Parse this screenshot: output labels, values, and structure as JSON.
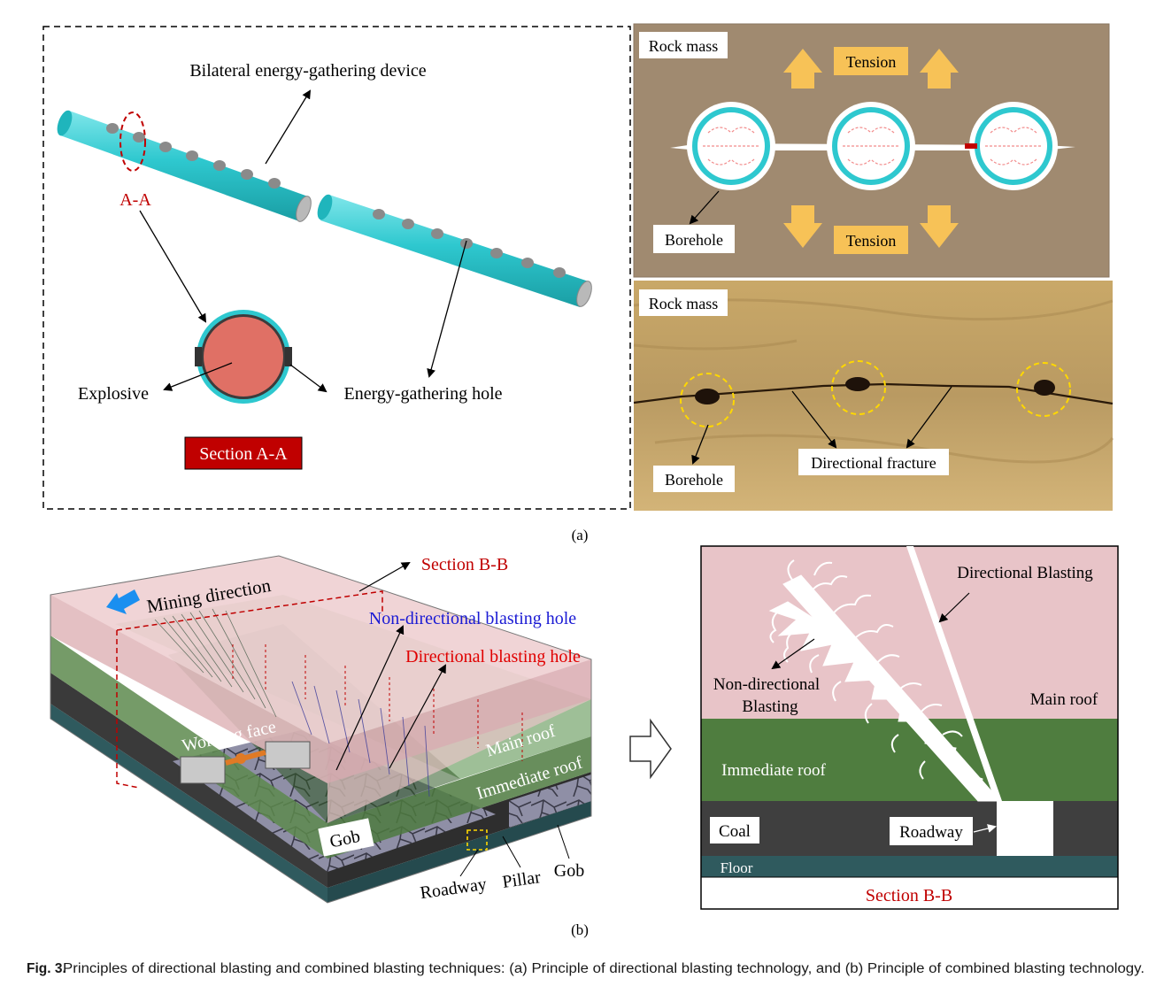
{
  "panel_a": {
    "device_label": "Bilateral energy-gathering device",
    "aa_label": "A-A",
    "explosive_label": "Explosive",
    "hole_label": "Energy-gathering hole",
    "section_label": "Section A-A",
    "tension_top": "Tension",
    "tension_bottom": "Tension",
    "rock_mass_1": "Rock mass",
    "borehole_1": "Borehole",
    "rock_mass_2": "Rock mass",
    "borehole_2": "Borehole",
    "fracture_label": "Directional fracture",
    "sub_label": "(a)"
  },
  "panel_b": {
    "section_bb": "Section B-B",
    "mining_direction": "Mining direction",
    "non_dir_hole": "Non-directional blasting hole",
    "dir_hole": "Directional blasting hole",
    "working_face": "Working face",
    "main_roof": "Main roof",
    "immediate_roof": "Immediate roof",
    "gob_1": "Gob",
    "roadway": "Roadway",
    "pillar": "Pillar",
    "gob_2": "Gob",
    "sub_label": "(b)"
  },
  "section_view": {
    "directional_blasting": "Directional Blasting",
    "non_directional": "Non-directional",
    "blasting": "Blasting",
    "main_roof": "Main roof",
    "immediate_roof": "Immediate roof",
    "coal": "Coal",
    "roadway": "Roadway",
    "floor": "Floor",
    "title": "Section B-B"
  },
  "caption": {
    "fig": "Fig. 3.",
    "text": "Principles of directional blasting and combined blasting techniques: (a) Principle of directional blasting technology, and (b) Principle of combined blasting technology."
  },
  "colors": {
    "cyan": "#2ec8cf",
    "explosive": "#e07065",
    "section_red": "#c00000",
    "rock_brown": "#a08a70",
    "tension_orange": "#f7c257",
    "pink_roof": "#e8c4c8",
    "green_roof": "#4f7d3f",
    "coal": "#3f3f3f",
    "floor": "#2f5a5e"
  }
}
